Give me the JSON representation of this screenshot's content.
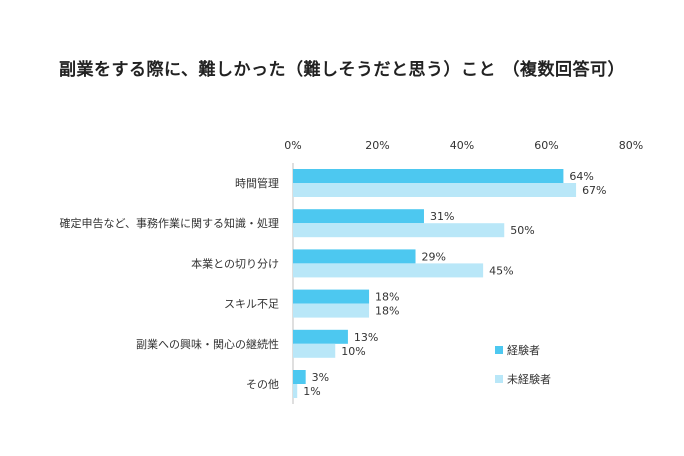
{
  "chart_data": {
    "type": "bar",
    "orientation": "horizontal",
    "title": "副業をする際に、難しかった（難しそうだと思う）こと （複数回答可）",
    "xlim": [
      0,
      80
    ],
    "x_ticks": [
      "0%",
      "20%",
      "40%",
      "60%",
      "80%"
    ],
    "x_tick_values": [
      0,
      20,
      40,
      60,
      80
    ],
    "categories": [
      "時間管理",
      "確定申告など、事務作業に関する知識・処理",
      "本業との切り分け",
      "スキル不足",
      "副業への興味・関心の継続性",
      "その他"
    ],
    "series": [
      {
        "name": "経験者",
        "color": "#4DC8F0",
        "values": [
          64,
          31,
          29,
          18,
          13,
          3
        ],
        "labels": [
          "64%",
          "31%",
          "29%",
          "18%",
          "13%",
          "3%"
        ]
      },
      {
        "name": "未経験者",
        "color": "#B9E7F8",
        "values": [
          67,
          50,
          45,
          18,
          10,
          1
        ],
        "labels": [
          "67%",
          "50%",
          "45%",
          "18%",
          "10%",
          "1%"
        ]
      }
    ],
    "grid": false,
    "legend_position": "bottom-right"
  }
}
